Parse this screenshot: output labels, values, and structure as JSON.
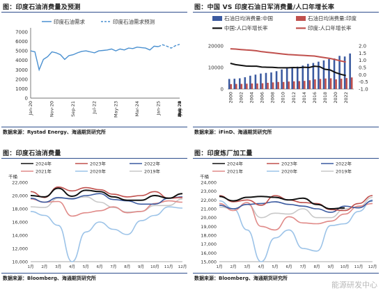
{
  "panels": [
    {
      "title": "图：印度石油消费量及预测",
      "source": "数据来源：Rystad Energy、海通期货研究所"
    },
    {
      "title": "图：中国 VS 印度石油日军消费量/人口年增长率",
      "source": "数据来源：iFinD、海通期货研究所"
    },
    {
      "title": "图：印度石油消费量",
      "source": "数据来源：Bloomberg、海通期货研究所"
    },
    {
      "title": "图：印度炼厂加工量",
      "source": "数据来源：Bloomberg、海通期货研究所"
    }
  ],
  "watermark": "能源研发中心",
  "colors": {
    "blue": "#4a90d0",
    "red": "#c0504d",
    "navy": "#3b5aa0",
    "lightred": "#e08a88",
    "lightblue": "#9cc3e8",
    "gray": "#c8c8c8",
    "black": "#111111"
  },
  "chart_data": [
    {
      "type": "line",
      "x": [
        "Jan-20",
        "Mar-20",
        "May-20",
        "Jul-20",
        "Sep-20",
        "Nov-20",
        "Jan-21",
        "Mar-21",
        "May-21",
        "Jul-21",
        "Sep-21",
        "Nov-21",
        "Jan-22",
        "Mar-22",
        "May-22",
        "Jul-22",
        "Sep-22",
        "Nov-22",
        "Jan-23",
        "Mar-23",
        "May-23",
        "Jul-23",
        "Sep-23",
        "Nov-23",
        "Jan-24",
        "Mar-24",
        "May-24",
        "Jul-24",
        "Sep-24",
        "Nov-24",
        "Jan-25",
        "Mar-25",
        "May-25",
        "Jul-25",
        "Sep-25",
        "Nov-25"
      ],
      "xticks": [
        "Jan-20",
        "Jun-20",
        "Nov-20",
        "Apr-21",
        "Sep-21",
        "Feb-22",
        "Jul-22",
        "Dec-22",
        "May-23",
        "Oct-23",
        "Mar-24",
        "Aug-24",
        "Jan-25",
        "Jun-25",
        "Nov-25"
      ],
      "series": [
        {
          "name": "印度石油需求",
          "style": "solid",
          "values": [
            5000,
            4900,
            3000,
            4100,
            4400,
            4900,
            4800,
            4600,
            4100,
            4500,
            4600,
            4800,
            4950,
            5000,
            4900,
            4800,
            5000,
            5050,
            5100,
            5200,
            5000,
            5200,
            5100,
            5300,
            5250,
            5400,
            5350,
            5300,
            5100,
            5500,
            5450,
            null,
            null,
            null,
            null,
            null
          ]
        },
        {
          "name": "印度石油需求预测",
          "style": "dashed",
          "values": [
            null,
            null,
            null,
            null,
            null,
            null,
            null,
            null,
            null,
            null,
            null,
            null,
            null,
            null,
            null,
            null,
            null,
            null,
            null,
            null,
            null,
            null,
            null,
            null,
            null,
            null,
            null,
            null,
            null,
            null,
            5450,
            5650,
            5500,
            5300,
            5550,
            5700
          ]
        }
      ],
      "yticks": [
        0,
        1000,
        2000,
        3000,
        4000,
        5000,
        6000,
        7000
      ],
      "ylim": [
        0,
        7000
      ]
    },
    {
      "type": "bar",
      "categories": [
        "2000",
        "2001",
        "2002",
        "2003",
        "2004",
        "2005",
        "2006",
        "2007",
        "2008",
        "2009",
        "2010",
        "2011",
        "2012",
        "2013",
        "2014",
        "2015",
        "2016",
        "2017",
        "2018",
        "2019",
        "2020",
        "2021",
        "2022",
        "2023"
      ],
      "xticks": [
        "2000",
        "2002",
        "2004",
        "2006",
        "2008",
        "2010",
        "2012",
        "2014",
        "2016",
        "2018",
        "2020",
        "2022"
      ],
      "series": [
        {
          "name": "石油日均消费量:中国",
          "kind": "bar",
          "values": [
            4700,
            4800,
            5000,
            5500,
            6200,
            6700,
            7200,
            7500,
            7700,
            8300,
            9100,
            9600,
            10000,
            10400,
            10900,
            11700,
            12100,
            12700,
            13300,
            13900,
            14200,
            15400,
            15100,
            16500
          ]
        },
        {
          "name": "石油日均消费量:印度",
          "kind": "bar",
          "values": [
            2300,
            2400,
            2400,
            2500,
            2600,
            2600,
            2700,
            2900,
            3100,
            3300,
            3300,
            3500,
            3600,
            3700,
            3800,
            4100,
            4500,
            4700,
            4900,
            5000,
            4500,
            4800,
            5100,
            5400
          ]
        },
        {
          "name": "中国:人口年增长率",
          "kind": "line",
          "values": [
            0.79,
            0.7,
            0.65,
            0.6,
            0.59,
            0.59,
            0.53,
            0.52,
            0.51,
            0.49,
            0.48,
            0.48,
            0.5,
            0.49,
            0.52,
            0.5,
            0.59,
            0.56,
            0.38,
            0.33,
            0.15,
            0.03,
            -0.06,
            null
          ]
        },
        {
          "name": "印度:人口年增长率",
          "kind": "line",
          "values": [
            1.8,
            1.78,
            1.75,
            1.72,
            1.7,
            1.66,
            1.6,
            1.56,
            1.52,
            1.48,
            1.44,
            1.4,
            1.38,
            1.36,
            1.34,
            1.32,
            1.3,
            1.24,
            1.18,
            1.13,
            1.05,
            0.96,
            0.88,
            null
          ]
        }
      ],
      "y_left": {
        "ticks": [
          0,
          10000,
          20000
        ],
        "lim": [
          0,
          20000
        ]
      },
      "y_right": {
        "ticks": [
          "-1.0",
          "-0.5",
          "0.0",
          "0.5",
          "1.0",
          "1.5",
          "2.0"
        ],
        "lim": [
          -1,
          2
        ]
      }
    },
    {
      "type": "line",
      "unit": "千桶",
      "categories": [
        "1月",
        "2月",
        "3月",
        "4月",
        "5月",
        "6月",
        "7月",
        "8月",
        "9月",
        "10月",
        "11月",
        "12月"
      ],
      "series": [
        {
          "name": "2024年",
          "values": [
            20000,
            19800,
            21100,
            19900,
            20800,
            20600,
            19800,
            19300,
            19300,
            20000,
            19600,
            20300
          ]
        },
        {
          "name": "2023年",
          "values": [
            20600,
            19700,
            21300,
            20700,
            21200,
            20900,
            20200,
            19800,
            20000,
            20600,
            19600,
            19700
          ]
        },
        {
          "name": "2022年",
          "values": [
            19600,
            19000,
            19700,
            19500,
            20000,
            20300,
            19400,
            19200,
            18700,
            18700,
            19600,
            19800
          ]
        },
        {
          "name": "2021年",
          "values": [
            19500,
            19000,
            19100,
            16900,
            17400,
            17700,
            18300,
            17400,
            17600,
            18800,
            19200,
            19000
          ]
        },
        {
          "name": "2020年",
          "values": [
            17600,
            17000,
            15500,
            9800,
            14500,
            16000,
            14900,
            14100,
            16200,
            17000,
            18300,
            18100
          ]
        },
        {
          "name": "2019年",
          "values": [
            18300,
            18200,
            19600,
            19600,
            19800,
            19000,
            18200,
            17500,
            17600,
            18500,
            18500,
            19500
          ]
        }
      ],
      "yticks": [
        "10,000",
        "12,000",
        "14,000",
        "16,000",
        "18,000",
        "20,000",
        "22,000"
      ],
      "ylim": [
        10000,
        22000
      ]
    },
    {
      "type": "line",
      "unit": "千桶",
      "categories": [
        "1月",
        "2月",
        "3月",
        "4月",
        "5月",
        "6月",
        "7月",
        "8月",
        "9月",
        "10月",
        "11月",
        "12月"
      ],
      "series": [
        {
          "name": "2024年",
          "values": [
            22400,
            21900,
            22300,
            22400,
            22300,
            22000,
            22200,
            21500,
            21000,
            21100,
            null,
            null
          ]
        },
        {
          "name": "2023年",
          "values": [
            22500,
            21800,
            22000,
            21400,
            22500,
            22000,
            21700,
            21600,
            20900,
            20800,
            21600,
            22500
          ]
        },
        {
          "name": "2022年",
          "values": [
            21400,
            21000,
            21500,
            21600,
            21800,
            21500,
            21300,
            21000,
            20600,
            21300,
            21100,
            21900
          ]
        },
        {
          "name": "2021年",
          "values": [
            21600,
            20800,
            21700,
            19000,
            18600,
            20100,
            19400,
            19300,
            19600,
            20400,
            21300,
            21600
          ]
        },
        {
          "name": "2020年",
          "values": [
            21900,
            21000,
            18600,
            15000,
            17700,
            18600,
            16500,
            16200,
            19100,
            19300,
            20700,
            22000
          ]
        },
        {
          "name": "2019年",
          "values": [
            21200,
            21000,
            21500,
            20000,
            20500,
            20400,
            21000,
            20000,
            20000,
            21000,
            21200,
            22300
          ]
        }
      ],
      "yticks": [
        "15,000",
        "16,000",
        "17,000",
        "18,000",
        "19,000",
        "20,000",
        "21,000",
        "22,000",
        "23,000",
        "24,000"
      ],
      "ylim": [
        15000,
        24000
      ]
    }
  ]
}
